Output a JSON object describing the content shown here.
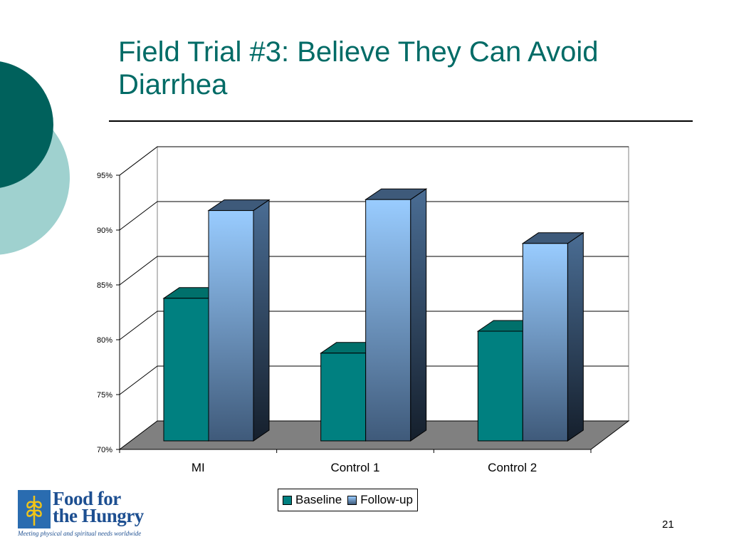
{
  "slide": {
    "title": "Field Trial #3: Believe They Can Avoid Diarrhea",
    "number": "21"
  },
  "logo": {
    "name_line1": "Food for",
    "name_line2": "the Hungry",
    "tagline": "Meeting physical and spiritual needs worldwide"
  },
  "colors": {
    "teal_dark": "#00615c",
    "teal_light": "#9fd1cf",
    "title": "#006b66",
    "baseline_bar": "#008080",
    "followup_bar_top": "#99ccff",
    "followup_bar_bottom": "#3f5a7a",
    "floor": "#808080"
  },
  "chart_data": {
    "type": "bar",
    "categories": [
      "MI",
      "Control 1",
      "Control 2"
    ],
    "series": [
      {
        "name": "Baseline",
        "values": [
          83,
          78,
          80
        ]
      },
      {
        "name": "Follow-up",
        "values": [
          91,
          92,
          88
        ]
      }
    ],
    "ylim": [
      70,
      95
    ],
    "yticks": [
      "70%",
      "75%",
      "80%",
      "85%",
      "90%",
      "95%"
    ],
    "grid": true,
    "legend": "bottom",
    "style": "3d-clustered"
  }
}
